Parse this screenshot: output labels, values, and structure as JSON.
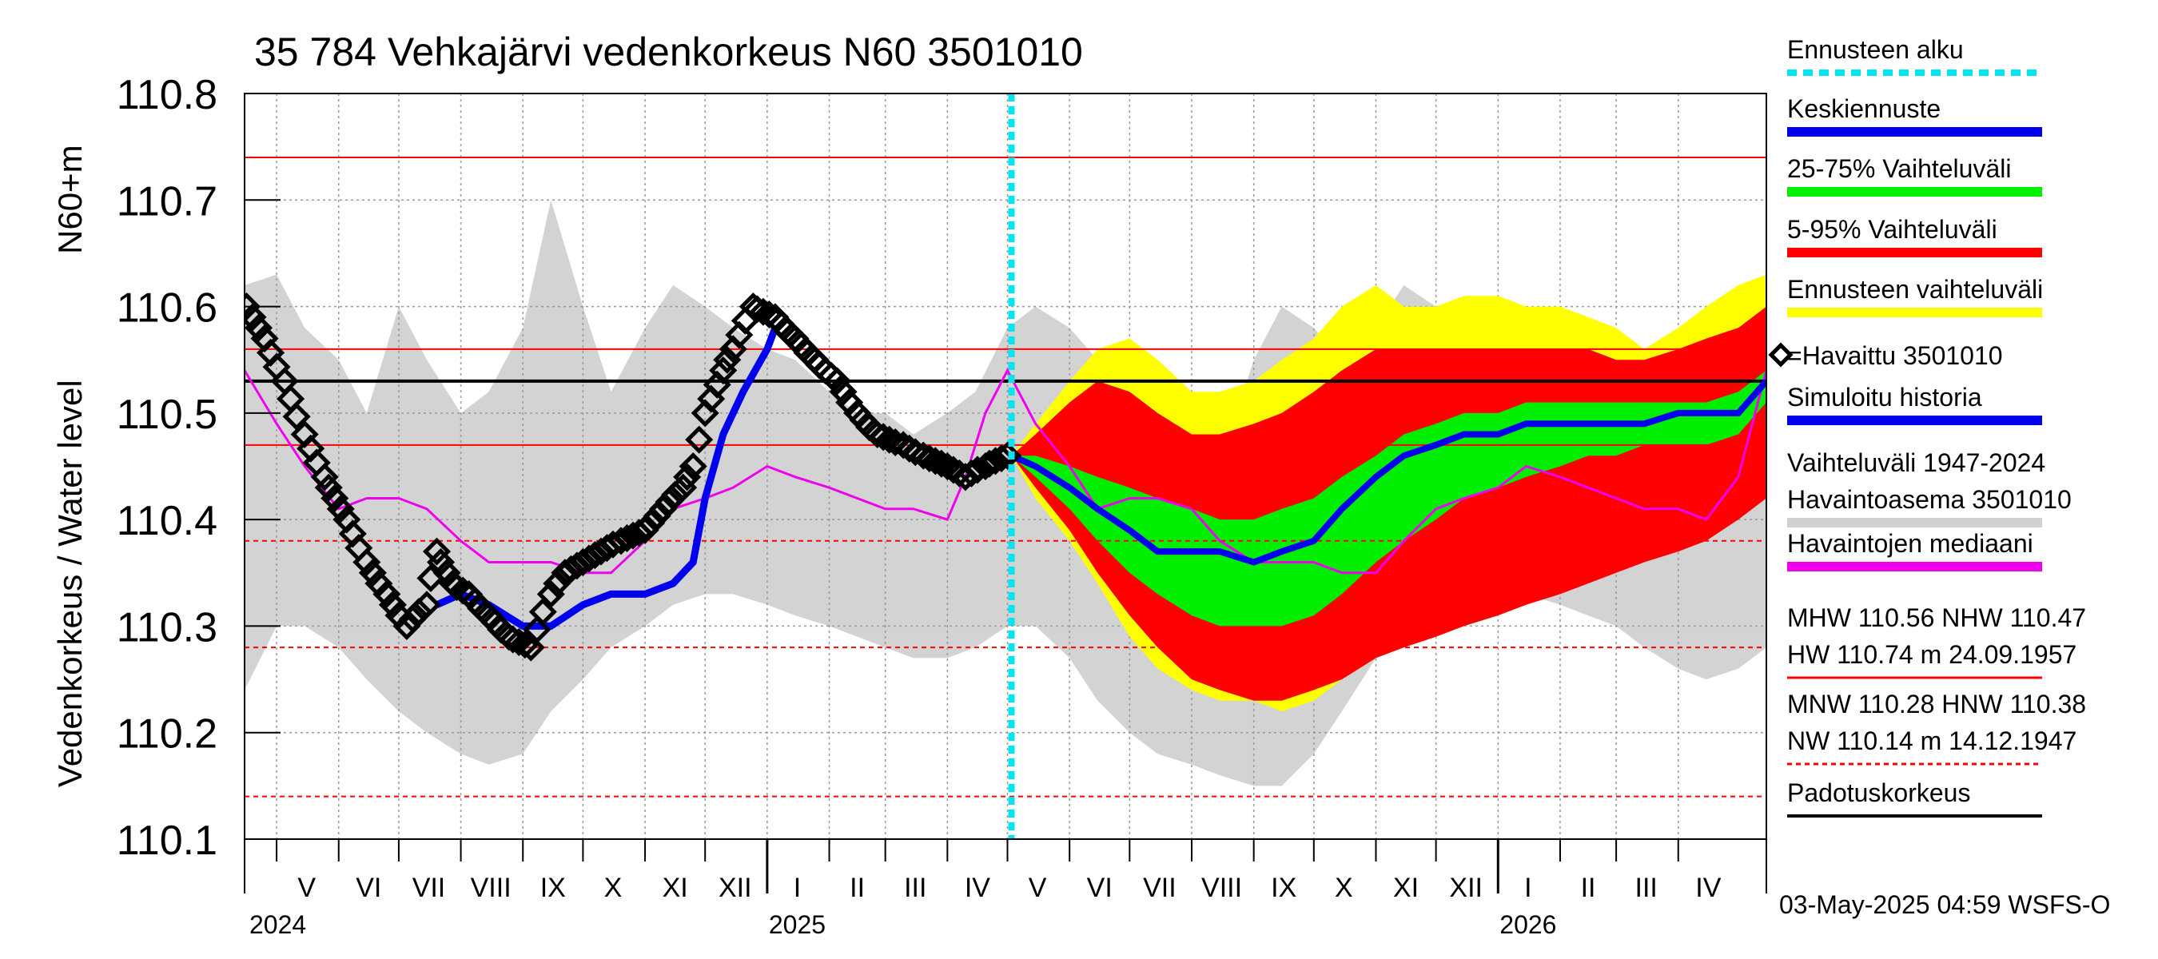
{
  "chart_data": {
    "type": "line",
    "title": "35 784 Vehkajärvi vedenkorkeus N60 3501010",
    "ylabel_top": "N60+m",
    "ylabel": "Vedenkorkeus / Water level",
    "ylim": [
      110.1,
      110.8
    ],
    "yticks": [
      "110.1",
      "110.2",
      "110.3",
      "110.4",
      "110.5",
      "110.6",
      "110.7",
      "110.8"
    ],
    "x_range": [
      "2024-04-15",
      "2026-05-15"
    ],
    "forecast_start": "2025-05-03",
    "timestamp": "03-May-2025 04:59 WSFS-O",
    "month_labels": [
      {
        "label": "V",
        "date": "2024-05-16"
      },
      {
        "label": "VI",
        "date": "2024-06-16"
      },
      {
        "label": "VII",
        "date": "2024-07-16"
      },
      {
        "label": "VIII",
        "date": "2024-08-16"
      },
      {
        "label": "IX",
        "date": "2024-09-16"
      },
      {
        "label": "X",
        "date": "2024-10-16"
      },
      {
        "label": "XI",
        "date": "2024-11-16"
      },
      {
        "label": "XII",
        "date": "2024-12-16"
      },
      {
        "label": "I",
        "date": "2025-01-16"
      },
      {
        "label": "II",
        "date": "2025-02-15"
      },
      {
        "label": "III",
        "date": "2025-03-16"
      },
      {
        "label": "IV",
        "date": "2025-04-16"
      },
      {
        "label": "V",
        "date": "2025-05-16"
      },
      {
        "label": "VI",
        "date": "2025-06-16"
      },
      {
        "label": "VII",
        "date": "2025-07-16"
      },
      {
        "label": "VIII",
        "date": "2025-08-16"
      },
      {
        "label": "IX",
        "date": "2025-09-16"
      },
      {
        "label": "X",
        "date": "2025-10-16"
      },
      {
        "label": "XI",
        "date": "2025-11-16"
      },
      {
        "label": "XII",
        "date": "2025-12-16"
      },
      {
        "label": "I",
        "date": "2026-01-16"
      },
      {
        "label": "II",
        "date": "2026-02-15"
      },
      {
        "label": "III",
        "date": "2026-03-16"
      },
      {
        "label": "IV",
        "date": "2026-04-16"
      }
    ],
    "year_labels": [
      {
        "label": "2024",
        "date": "2024-04-16"
      },
      {
        "label": "2025",
        "date": "2025-01-01"
      },
      {
        "label": "2026",
        "date": "2026-01-01"
      }
    ],
    "reference_lines": [
      {
        "name": "HW",
        "value": 110.74,
        "color": "#ff0000",
        "style": "solid"
      },
      {
        "name": "MHW",
        "value": 110.56,
        "color": "#ff0000",
        "style": "solid"
      },
      {
        "name": "NHW",
        "value": 110.47,
        "color": "#ff0000",
        "style": "solid"
      },
      {
        "name": "HNW",
        "value": 110.38,
        "color": "#ff0000",
        "style": "dashed"
      },
      {
        "name": "MNW",
        "value": 110.28,
        "color": "#ff0000",
        "style": "dashed"
      },
      {
        "name": "NW",
        "value": 110.14,
        "color": "#ff0000",
        "style": "dashed"
      },
      {
        "name": "Padotuskorkeus",
        "value": 110.53,
        "color": "#000000",
        "style": "solid"
      }
    ],
    "history_band": {
      "x": [
        "2024-04-15",
        "2024-05-01",
        "2024-05-15",
        "2024-06-01",
        "2024-06-15",
        "2024-07-01",
        "2024-07-15",
        "2024-08-01",
        "2024-08-15",
        "2024-09-01",
        "2024-09-15",
        "2024-10-01",
        "2024-10-15",
        "2024-11-01",
        "2024-11-15",
        "2024-12-01",
        "2024-12-15",
        "2025-01-01",
        "2025-01-15",
        "2025-02-01",
        "2025-02-15",
        "2025-03-01",
        "2025-03-15",
        "2025-04-01",
        "2025-04-15",
        "2025-05-01",
        "2025-05-15",
        "2025-06-01",
        "2025-06-15",
        "2025-07-01",
        "2025-07-15",
        "2025-08-01",
        "2025-08-15",
        "2025-09-01",
        "2025-09-15",
        "2025-10-01",
        "2025-10-15",
        "2025-11-01",
        "2025-11-15",
        "2025-12-01",
        "2025-12-15",
        "2026-01-01",
        "2026-01-15",
        "2026-02-01",
        "2026-02-15",
        "2026-03-01",
        "2026-03-15",
        "2026-04-01",
        "2026-04-15",
        "2026-05-01",
        "2026-05-15"
      ],
      "upper": [
        110.62,
        110.63,
        110.58,
        110.55,
        110.5,
        110.6,
        110.55,
        110.5,
        110.52,
        110.58,
        110.7,
        110.6,
        110.52,
        110.58,
        110.62,
        110.6,
        110.58,
        110.56,
        110.55,
        110.52,
        110.5,
        110.5,
        110.48,
        110.5,
        110.52,
        110.58,
        110.6,
        110.58,
        110.55,
        110.5,
        110.5,
        110.45,
        110.45,
        110.55,
        110.6,
        110.58,
        110.55,
        110.58,
        110.62,
        110.6,
        110.58,
        110.56,
        110.55,
        110.53,
        110.5,
        110.5,
        110.48,
        110.5,
        110.55,
        110.6,
        110.62
      ],
      "lower": [
        110.24,
        110.3,
        110.3,
        110.28,
        110.25,
        110.22,
        110.2,
        110.18,
        110.17,
        110.18,
        110.22,
        110.25,
        110.28,
        110.3,
        110.32,
        110.33,
        110.33,
        110.32,
        110.31,
        110.3,
        110.29,
        110.28,
        110.27,
        110.27,
        110.28,
        110.3,
        110.3,
        110.27,
        110.23,
        110.2,
        110.18,
        110.17,
        110.16,
        110.15,
        110.15,
        110.18,
        110.22,
        110.27,
        110.3,
        110.32,
        110.33,
        110.34,
        110.33,
        110.32,
        110.31,
        110.3,
        110.28,
        110.26,
        110.25,
        110.26,
        110.28
      ]
    },
    "history_trace": {
      "x": [
        "2025-05-03",
        "2025-05-20",
        "2025-06-01",
        "2025-06-15",
        "2025-07-01",
        "2025-07-15",
        "2025-08-01",
        "2025-08-15",
        "2025-09-01",
        "2025-09-15",
        "2025-10-01",
        "2025-10-15",
        "2025-11-01",
        "2025-11-15",
        "2025-12-01",
        "2025-12-15",
        "2026-01-01",
        "2026-01-15",
        "2026-02-01",
        "2026-02-15",
        "2026-03-01",
        "2026-03-15",
        "2026-04-01",
        "2026-04-15",
        "2026-05-01",
        "2026-05-15"
      ],
      "y": [
        110.46,
        110.5,
        110.52,
        110.5,
        110.47,
        110.45,
        110.46,
        110.47,
        110.48,
        110.47,
        110.48,
        110.5,
        110.54,
        110.57,
        110.59,
        110.57,
        110.51,
        110.5,
        110.49,
        110.5,
        110.49,
        110.49,
        110.5,
        110.53,
        110.58,
        110.62
      ]
    },
    "forecast_dates": [
      "2025-05-03",
      "2025-05-15",
      "2025-06-01",
      "2025-06-15",
      "2025-07-01",
      "2025-07-15",
      "2025-08-01",
      "2025-08-15",
      "2025-09-01",
      "2025-09-15",
      "2025-10-01",
      "2025-10-15",
      "2025-11-01",
      "2025-11-15",
      "2025-12-01",
      "2025-12-15",
      "2026-01-01",
      "2026-01-15",
      "2026-02-01",
      "2026-02-15",
      "2026-03-01",
      "2026-03-15",
      "2026-04-01",
      "2026-04-15",
      "2026-05-01",
      "2026-05-15"
    ],
    "forecast_range_upper": [
      110.46,
      110.49,
      110.53,
      110.56,
      110.57,
      110.55,
      110.52,
      110.52,
      110.53,
      110.55,
      110.57,
      110.6,
      110.62,
      110.6,
      110.6,
      110.61,
      110.61,
      110.6,
      110.6,
      110.59,
      110.58,
      110.56,
      110.58,
      110.6,
      110.62,
      110.63
    ],
    "forecast_range_lower": [
      110.46,
      110.42,
      110.38,
      110.34,
      110.29,
      110.26,
      110.24,
      110.23,
      110.23,
      110.22,
      110.23,
      110.25,
      110.27,
      110.29,
      110.3,
      110.31,
      110.32,
      110.33,
      110.34,
      110.35,
      110.36,
      110.37,
      110.38,
      110.39,
      110.41,
      110.43
    ],
    "forecast_p95": [
      110.46,
      110.48,
      110.51,
      110.53,
      110.52,
      110.5,
      110.48,
      110.48,
      110.49,
      110.5,
      110.52,
      110.54,
      110.56,
      110.56,
      110.56,
      110.56,
      110.56,
      110.56,
      110.56,
      110.56,
      110.55,
      110.55,
      110.56,
      110.57,
      110.58,
      110.6
    ],
    "forecast_p5": [
      110.46,
      110.43,
      110.39,
      110.35,
      110.31,
      110.28,
      110.25,
      110.24,
      110.23,
      110.23,
      110.24,
      110.25,
      110.27,
      110.28,
      110.29,
      110.3,
      110.31,
      110.32,
      110.33,
      110.34,
      110.35,
      110.36,
      110.37,
      110.38,
      110.4,
      110.42
    ],
    "forecast_p75": [
      110.46,
      110.46,
      110.45,
      110.44,
      110.43,
      110.42,
      110.41,
      110.4,
      110.4,
      110.41,
      110.42,
      110.44,
      110.46,
      110.48,
      110.49,
      110.5,
      110.5,
      110.51,
      110.51,
      110.51,
      110.51,
      110.51,
      110.51,
      110.51,
      110.52,
      110.54
    ],
    "forecast_p25": [
      110.46,
      110.44,
      110.41,
      110.38,
      110.35,
      110.33,
      110.31,
      110.3,
      110.3,
      110.3,
      110.31,
      110.33,
      110.36,
      110.38,
      110.4,
      110.42,
      110.43,
      110.44,
      110.45,
      110.46,
      110.46,
      110.47,
      110.47,
      110.47,
      110.48,
      110.51
    ],
    "forecast_mean": [
      110.46,
      110.45,
      110.43,
      110.41,
      110.39,
      110.37,
      110.37,
      110.37,
      110.36,
      110.37,
      110.38,
      110.41,
      110.44,
      110.46,
      110.47,
      110.48,
      110.48,
      110.49,
      110.49,
      110.49,
      110.49,
      110.49,
      110.5,
      110.5,
      110.5,
      110.53
    ],
    "median": {
      "x": [
        "2024-04-15",
        "2024-05-01",
        "2024-05-15",
        "2024-06-01",
        "2024-06-15",
        "2024-07-01",
        "2024-07-15",
        "2024-08-01",
        "2024-08-15",
        "2024-09-01",
        "2024-09-15",
        "2024-10-01",
        "2024-10-15",
        "2024-11-01",
        "2024-11-15",
        "2024-12-01",
        "2024-12-15",
        "2025-01-01",
        "2025-01-15",
        "2025-02-01",
        "2025-02-15",
        "2025-03-01",
        "2025-03-15",
        "2025-04-01",
        "2025-04-10",
        "2025-04-20",
        "2025-05-01",
        "2025-05-15",
        "2025-06-01",
        "2025-06-15",
        "2025-07-01",
        "2025-07-15",
        "2025-08-01",
        "2025-08-15",
        "2025-09-01",
        "2025-09-15",
        "2025-10-01",
        "2025-10-15",
        "2025-11-01",
        "2025-11-15",
        "2025-12-01",
        "2025-12-15",
        "2026-01-01",
        "2026-01-15",
        "2026-02-01",
        "2026-02-15",
        "2026-03-01",
        "2026-03-15",
        "2026-04-01",
        "2026-04-15",
        "2026-05-01",
        "2026-05-15"
      ],
      "y": [
        110.54,
        110.49,
        110.45,
        110.41,
        110.42,
        110.42,
        110.41,
        110.38,
        110.36,
        110.36,
        110.36,
        110.35,
        110.35,
        110.38,
        110.41,
        110.42,
        110.43,
        110.45,
        110.44,
        110.43,
        110.42,
        110.41,
        110.41,
        110.4,
        110.44,
        110.5,
        110.54,
        110.49,
        110.45,
        110.41,
        110.42,
        110.42,
        110.41,
        110.38,
        110.36,
        110.36,
        110.36,
        110.35,
        110.35,
        110.38,
        110.41,
        110.42,
        110.43,
        110.45,
        110.44,
        110.43,
        110.42,
        110.41,
        110.41,
        110.4,
        110.44,
        110.54
      ]
    },
    "simulated": {
      "x": [
        "2024-07-20",
        "2024-08-01",
        "2024-08-15",
        "2024-09-01",
        "2024-09-15",
        "2024-10-01",
        "2024-10-15",
        "2024-11-01",
        "2024-11-15",
        "2024-11-25",
        "2024-12-01",
        "2024-12-10",
        "2024-12-20",
        "2025-01-01",
        "2025-01-05"
      ],
      "y": [
        110.32,
        110.33,
        110.32,
        110.3,
        110.3,
        110.32,
        110.33,
        110.33,
        110.34,
        110.36,
        110.42,
        110.48,
        110.52,
        110.56,
        110.58
      ]
    },
    "observed": {
      "x": [
        "2024-04-16",
        "2024-04-25",
        "2024-05-05",
        "2024-05-15",
        "2024-05-25",
        "2024-06-05",
        "2024-06-15",
        "2024-06-25",
        "2024-07-05",
        "2024-07-15",
        "2024-07-20",
        "2024-07-28",
        "2024-08-05",
        "2024-08-15",
        "2024-08-25",
        "2024-09-05",
        "2024-09-15",
        "2024-09-22",
        "2024-10-01",
        "2024-10-10",
        "2024-10-20",
        "2024-11-01",
        "2024-11-10",
        "2024-11-20",
        "2024-11-25",
        "2024-12-01",
        "2024-12-10",
        "2024-12-15",
        "2024-12-25",
        "2025-01-05",
        "2025-01-15",
        "2025-01-25",
        "2025-02-05",
        "2025-02-15",
        "2025-02-25",
        "2025-03-10",
        "2025-03-20",
        "2025-04-01",
        "2025-04-10",
        "2025-04-20",
        "2025-05-01"
      ],
      "y": [
        110.6,
        110.57,
        110.53,
        110.48,
        110.44,
        110.4,
        110.36,
        110.33,
        110.3,
        110.32,
        110.37,
        110.34,
        110.33,
        110.31,
        110.29,
        110.28,
        110.33,
        110.35,
        110.36,
        110.37,
        110.38,
        110.39,
        110.41,
        110.43,
        110.45,
        110.5,
        110.54,
        110.56,
        110.6,
        110.59,
        110.57,
        110.55,
        110.53,
        110.5,
        110.48,
        110.47,
        110.46,
        110.45,
        110.44,
        110.45,
        110.46
      ]
    },
    "legend": [
      {
        "label": "Ennusteen alku",
        "color": "#00e5f0",
        "kind": "dotted"
      },
      {
        "label": "Keskiennuste",
        "color": "#0000ee",
        "kind": "line"
      },
      {
        "label": "25-75% Vaihteluväli",
        "color": "#00ee00",
        "kind": "line"
      },
      {
        "label": "5-95% Vaihteluväli",
        "color": "#ff0000",
        "kind": "line"
      },
      {
        "label": "Ennusteen vaihteluväli",
        "color": "#ffff00",
        "kind": "line"
      },
      {
        "label": "=Havaittu 3501010",
        "color": "#000000",
        "kind": "diamond"
      },
      {
        "label": "Simuloitu historia",
        "color": "#0000ee",
        "kind": "line"
      },
      {
        "label": "Vaihteluväli 1947-2024",
        "label2": " Havaintoasema 3501010",
        "color": "#d0d0d0",
        "kind": "line"
      },
      {
        "label": "Havaintojen mediaani",
        "color": "#ee00ee",
        "kind": "line"
      },
      {
        "label": "MHW 110.56 NHW 110.47",
        "label2": "HW 110.74 m 24.09.1957",
        "color": "#ff0000",
        "kind": "line"
      },
      {
        "label": "MNW 110.28 HNW 110.38",
        "label2": "NW 110.14 m 14.12.1947",
        "color": "#ff0000",
        "kind": "dashed"
      },
      {
        "label": "Padotuskorkeus",
        "color": "#000000",
        "kind": "line"
      }
    ]
  }
}
